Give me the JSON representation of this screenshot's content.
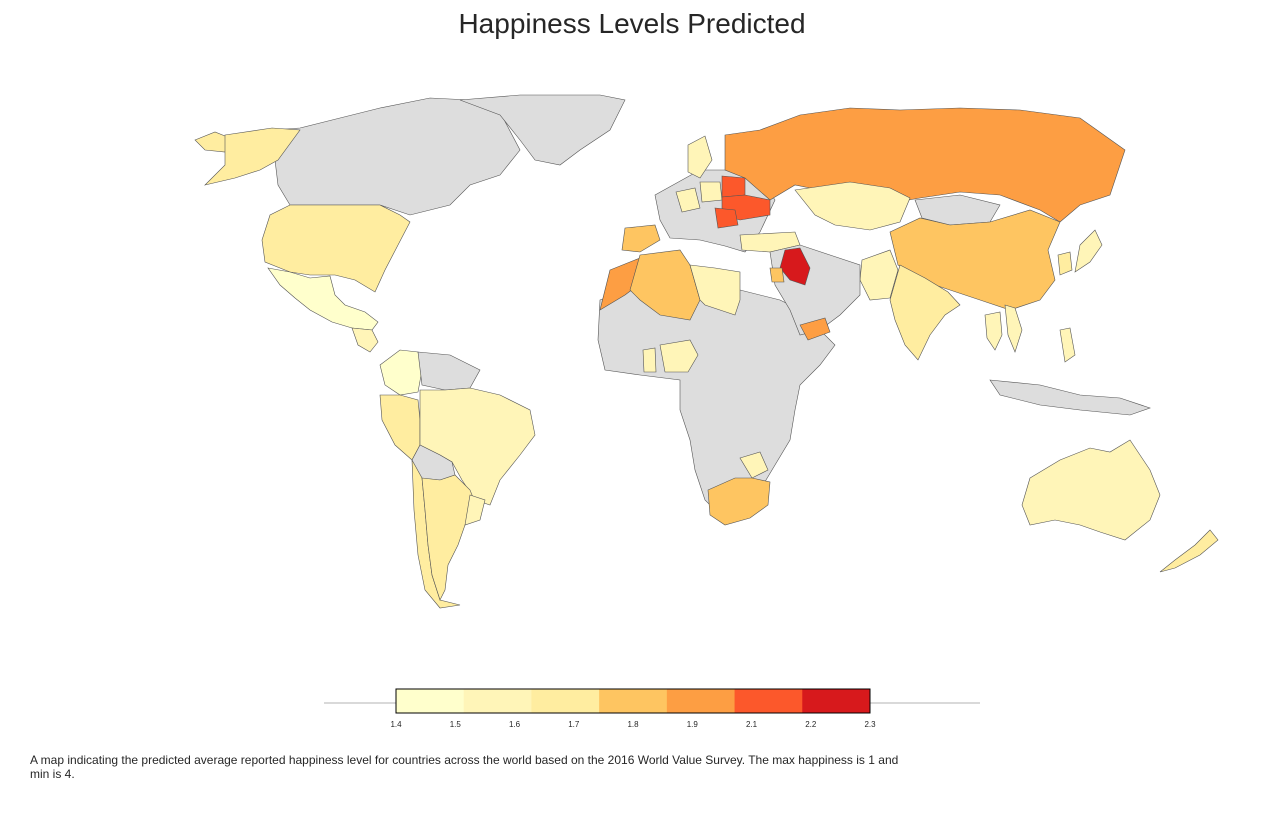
{
  "title": "Happiness Levels Predicted",
  "caption": "A map indicating the predicted average reported happiness level for countries across the world based on the 2016 World Value Survey. The max happiness is 1 and min is 4.",
  "no_data_color": "#dddddd",
  "chart_data": {
    "type": "choropleth",
    "scale": {
      "bins": [
        1.4,
        1.5,
        1.6,
        1.7,
        1.8,
        1.9,
        2.1,
        2.2,
        2.3
      ],
      "tick_labels": [
        "1.4",
        "1.5",
        "1.6",
        "1.7",
        "1.8",
        "1.9",
        "2.1",
        "2.2",
        "2.3"
      ],
      "colors": [
        "#ffffcc",
        "#fff5b8",
        "#ffeda0",
        "#fec561",
        "#fd9e43",
        "#fc582b",
        "#d7191c"
      ],
      "legend_placement": "bottom-center"
    },
    "regions": [
      {
        "id": "canada",
        "bin": null
      },
      {
        "id": "greenland",
        "bin": null
      },
      {
        "id": "alaska",
        "bin": 2
      },
      {
        "id": "usa",
        "bin": 2
      },
      {
        "id": "mexico",
        "bin": 0
      },
      {
        "id": "guatemala",
        "bin": 1
      },
      {
        "id": "colombia",
        "bin": 0
      },
      {
        "id": "venezuela",
        "bin": null
      },
      {
        "id": "peru",
        "bin": 2
      },
      {
        "id": "brazil",
        "bin": 1
      },
      {
        "id": "bolivia",
        "bin": null
      },
      {
        "id": "chile",
        "bin": 2
      },
      {
        "id": "argentina",
        "bin": 2
      },
      {
        "id": "uruguay",
        "bin": 1
      },
      {
        "id": "africa",
        "bin": null
      },
      {
        "id": "morocco",
        "bin": 4
      },
      {
        "id": "algeria",
        "bin": 3
      },
      {
        "id": "libya",
        "bin": 1
      },
      {
        "id": "nigeria",
        "bin": 1
      },
      {
        "id": "ghana",
        "bin": 1
      },
      {
        "id": "zimbabwe",
        "bin": 1
      },
      {
        "id": "south-africa",
        "bin": 3
      },
      {
        "id": "spain",
        "bin": 3
      },
      {
        "id": "europe",
        "bin": null
      },
      {
        "id": "sweden",
        "bin": 1
      },
      {
        "id": "germany",
        "bin": 1
      },
      {
        "id": "poland",
        "bin": 1
      },
      {
        "id": "belarus",
        "bin": 5
      },
      {
        "id": "ukraine",
        "bin": 5
      },
      {
        "id": "romania",
        "bin": 5
      },
      {
        "id": "turkey",
        "bin": 1
      },
      {
        "id": "russia",
        "bin": 4
      },
      {
        "id": "kazakhstan",
        "bin": 1
      },
      {
        "id": "mongolia",
        "bin": null
      },
      {
        "id": "china",
        "bin": 3
      },
      {
        "id": "india",
        "bin": 2
      },
      {
        "id": "pakistan",
        "bin": 1
      },
      {
        "id": "iraq",
        "bin": 6
      },
      {
        "id": "jordan",
        "bin": 3
      },
      {
        "id": "middle-east",
        "bin": null
      },
      {
        "id": "yemen",
        "bin": 4
      },
      {
        "id": "japan",
        "bin": 1
      },
      {
        "id": "korea",
        "bin": 2
      },
      {
        "id": "thailand",
        "bin": 1
      },
      {
        "id": "vietnam",
        "bin": 1
      },
      {
        "id": "philippines",
        "bin": 1
      },
      {
        "id": "indonesia",
        "bin": null
      },
      {
        "id": "australia",
        "bin": 1
      },
      {
        "id": "new-zealand",
        "bin": 2
      }
    ]
  }
}
